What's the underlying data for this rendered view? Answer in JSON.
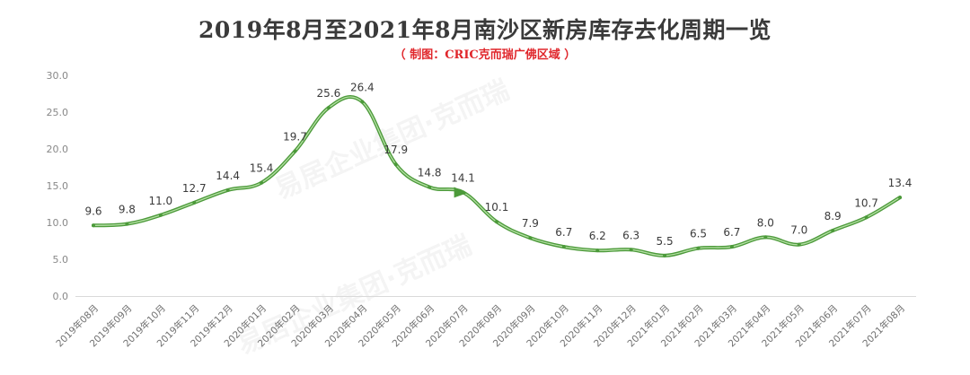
{
  "title": "2019年8月至2021年8月南沙区新房库存去化周期一览",
  "subtitle": "（ 制图：CRIC克而瑞广佛区域 ）",
  "watermark": "易居企业集团·克而瑞",
  "chart_data": {
    "type": "line",
    "title": "2019年8月至2021年8月南沙区新房库存去化周期一览",
    "categories": [
      "2019年08月",
      "2019年09月",
      "2019年10月",
      "2019年11月",
      "2019年12月",
      "2020年01月",
      "2020年02月",
      "2020年03月",
      "2020年04月",
      "2020年05月",
      "2020年06月",
      "2020年07月",
      "2020年08月",
      "2020年09月",
      "2020年10月",
      "2020年11月",
      "2020年12月",
      "2021年01月",
      "2021年02月",
      "2021年03月",
      "2021年04月",
      "2021年05月",
      "2021年06月",
      "2021年07月",
      "2021年08月"
    ],
    "values": [
      9.6,
      9.8,
      11.0,
      12.7,
      14.4,
      15.4,
      19.7,
      25.6,
      26.4,
      17.9,
      14.8,
      14.1,
      10.1,
      7.9,
      6.7,
      6.2,
      6.3,
      5.5,
      6.5,
      6.7,
      8.0,
      7.0,
      8.9,
      10.7,
      13.4
    ],
    "labels": [
      "9.6",
      "9.8",
      "11.0",
      "12.7",
      "14.4",
      "15.4",
      "19.7",
      "25.6",
      "26.4",
      "17.9",
      "14.8",
      "14.1",
      "10.1",
      "7.9",
      "6.7",
      "6.2",
      "6.3",
      "5.5",
      "6.5",
      "6.7",
      "8.0",
      "7.0",
      "8.9",
      "10.7",
      "13.4"
    ],
    "y_ticks": [
      "0.0",
      "5.0",
      "10.0",
      "15.0",
      "20.0",
      "25.0",
      "30.0"
    ],
    "ylim": [
      0,
      30
    ],
    "xlabel": "",
    "ylabel": "",
    "grid": false,
    "line_color": "#4c9a3a",
    "line_highlight": "#b6e0a6",
    "arrow_after_index": 11
  }
}
